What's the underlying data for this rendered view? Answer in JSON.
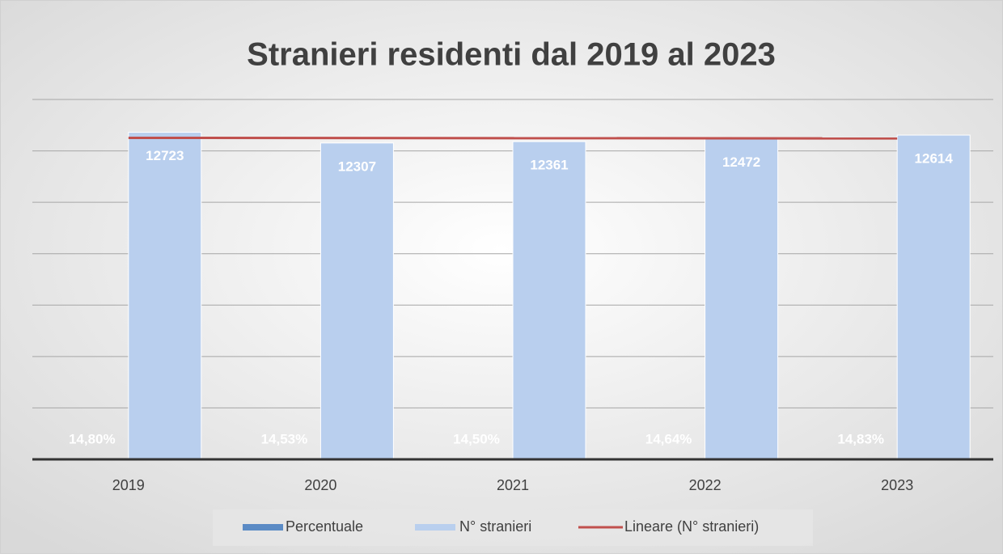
{
  "chart_data": {
    "type": "bar",
    "title": "Stranieri residenti dal 2019 al 2023",
    "categories": [
      "2019",
      "2020",
      "2021",
      "2022",
      "2023"
    ],
    "series": [
      {
        "name": "Percentuale",
        "color": "#5b8bc5",
        "values": [
          14.8,
          14.53,
          14.5,
          14.64,
          14.83
        ],
        "value_labels": [
          "14,80%",
          "14,53%",
          "14,50%",
          "14,64%",
          "14,83%"
        ]
      },
      {
        "name": "N° stranieri",
        "color": "#b9cfee",
        "values": [
          12723,
          12307,
          12361,
          12472,
          12614
        ]
      }
    ],
    "trendline": {
      "name": "Lineare (N° stranieri)",
      "color": "#c0504d"
    },
    "ylim": [
      0,
      14000
    ],
    "yticks": [
      0,
      2000,
      4000,
      6000,
      8000,
      10000,
      12000,
      14000
    ],
    "grid": true
  }
}
